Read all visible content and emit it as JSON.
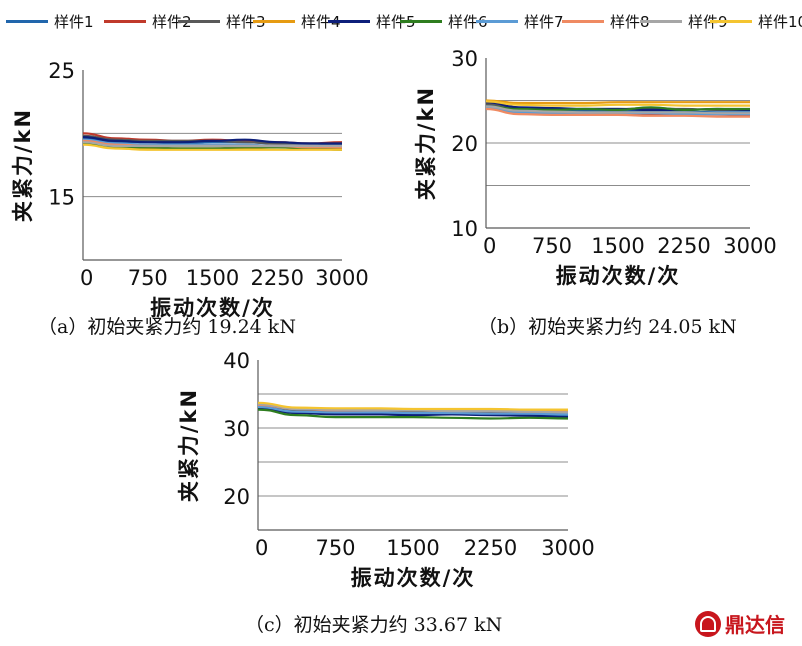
{
  "legend": [
    {
      "label": "样件1",
      "color": "#2166ac"
    },
    {
      "label": "样件2",
      "color": "#c0392b"
    },
    {
      "label": "样件3",
      "color": "#595959"
    },
    {
      "label": "样件4",
      "color": "#e69b12"
    },
    {
      "label": "样件5",
      "color": "#0d1f7a"
    },
    {
      "label": "样件6",
      "color": "#2e7d1f"
    },
    {
      "label": "样件7",
      "color": "#5b9bd5"
    },
    {
      "label": "样件8",
      "color": "#ef8a62"
    },
    {
      "label": "样件9",
      "color": "#a6a6a6"
    },
    {
      "label": "样件10",
      "color": "#f4c430"
    }
  ],
  "chart_data": [
    {
      "type": "line",
      "caption": "（a）初始夹紧力约 19.24 kN",
      "xlabel": "振动次数/次",
      "ylabel": "夹紧力/kN",
      "xlim": [
        0,
        3000
      ],
      "ylim": [
        10,
        25
      ],
      "xticks": [
        "0",
        "750",
        "1500",
        "2250",
        "3000"
      ],
      "yticks": [
        {
          "value": 15,
          "label": "15"
        },
        {
          "value": 25,
          "label": "25"
        }
      ],
      "gridlines": [
        15,
        20
      ],
      "x": [
        0,
        375,
        750,
        1125,
        1500,
        1875,
        2250,
        2625,
        3000
      ],
      "series": [
        {
          "name": "样件1",
          "values": [
            19.6,
            19.3,
            19.3,
            19.2,
            19.3,
            19.3,
            19.2,
            19.2,
            19.1
          ]
        },
        {
          "name": "样件2",
          "values": [
            20.0,
            19.6,
            19.5,
            19.4,
            19.5,
            19.4,
            19.3,
            19.2,
            19.3
          ]
        },
        {
          "name": "样件3",
          "values": [
            19.8,
            19.5,
            19.4,
            19.4,
            19.4,
            19.3,
            19.2,
            19.2,
            19.2
          ]
        },
        {
          "name": "样件4",
          "values": [
            19.3,
            18.9,
            18.8,
            18.8,
            18.8,
            18.8,
            18.9,
            18.8,
            18.8
          ]
        },
        {
          "name": "样件5",
          "values": [
            19.7,
            19.4,
            19.3,
            19.3,
            19.4,
            19.5,
            19.3,
            19.2,
            19.2
          ]
        },
        {
          "name": "样件6",
          "values": [
            19.2,
            18.9,
            18.9,
            18.8,
            18.8,
            18.9,
            18.9,
            18.8,
            18.7
          ]
        },
        {
          "name": "样件7",
          "values": [
            19.5,
            19.2,
            19.1,
            19.1,
            19.1,
            19.1,
            19.0,
            19.0,
            19.0
          ]
        },
        {
          "name": "样件8",
          "values": [
            19.4,
            19.1,
            19.0,
            19.0,
            19.0,
            19.0,
            19.0,
            18.9,
            18.9
          ]
        },
        {
          "name": "样件9",
          "values": [
            19.3,
            19.0,
            19.0,
            19.0,
            19.0,
            19.0,
            19.0,
            19.0,
            19.0
          ]
        },
        {
          "name": "样件10",
          "values": [
            19.1,
            18.8,
            18.7,
            18.7,
            18.7,
            18.7,
            18.7,
            18.7,
            18.7
          ]
        }
      ]
    },
    {
      "type": "line",
      "caption": "（b）初始夹紧力约 24.05 kN",
      "xlabel": "振动次数/次",
      "ylabel": "夹紧力/kN",
      "xlim": [
        0,
        3000
      ],
      "ylim": [
        10,
        30
      ],
      "xticks": [
        "0",
        "750",
        "1500",
        "2250",
        "3000"
      ],
      "yticks": [
        {
          "value": 10,
          "label": "10"
        },
        {
          "value": 20,
          "label": "20"
        },
        {
          "value": 30,
          "label": "30"
        }
      ],
      "gridlines": [
        15,
        20,
        25
      ],
      "x": [
        0,
        375,
        750,
        1125,
        1500,
        1875,
        2250,
        2625,
        3000
      ],
      "series": [
        {
          "name": "样件1",
          "values": [
            24.4,
            23.9,
            23.8,
            23.8,
            23.8,
            23.7,
            23.7,
            23.6,
            23.6
          ]
        },
        {
          "name": "样件2",
          "values": [
            24.2,
            23.6,
            23.5,
            23.5,
            23.4,
            23.4,
            23.4,
            23.4,
            23.3
          ]
        },
        {
          "name": "样件3",
          "values": [
            24.6,
            24.1,
            24.0,
            24.0,
            24.0,
            24.1,
            24.0,
            23.9,
            23.9
          ]
        },
        {
          "name": "样件4",
          "values": [
            25.0,
            24.7,
            24.7,
            24.7,
            24.8,
            24.8,
            24.8,
            24.8,
            24.8
          ]
        },
        {
          "name": "样件5",
          "values": [
            24.8,
            24.2,
            24.1,
            24.0,
            24.0,
            23.9,
            23.9,
            24.0,
            23.9
          ]
        },
        {
          "name": "样件6",
          "values": [
            24.3,
            24.0,
            23.9,
            24.0,
            23.9,
            24.2,
            23.9,
            24.0,
            24.0
          ]
        },
        {
          "name": "样件7",
          "values": [
            24.1,
            23.6,
            23.5,
            23.5,
            23.5,
            23.5,
            23.4,
            23.4,
            23.4
          ]
        },
        {
          "name": "样件8",
          "values": [
            24.0,
            23.4,
            23.3,
            23.3,
            23.3,
            23.2,
            23.2,
            23.1,
            23.1
          ]
        },
        {
          "name": "样件9",
          "values": [
            24.3,
            23.8,
            23.7,
            23.6,
            23.6,
            23.6,
            23.6,
            23.5,
            23.5
          ]
        },
        {
          "name": "样件10",
          "values": [
            24.9,
            24.5,
            24.4,
            24.4,
            24.5,
            24.5,
            24.4,
            24.4,
            24.4
          ]
        }
      ]
    },
    {
      "type": "line",
      "caption": "（c）初始夹紧力约 33.67 kN",
      "xlabel": "振动次数/次",
      "ylabel": "夹紧力/kN",
      "xlim": [
        0,
        3000
      ],
      "ylim": [
        15,
        40
      ],
      "xticks": [
        "0",
        "750",
        "1500",
        "2250",
        "3000"
      ],
      "yticks": [
        {
          "value": 20,
          "label": "20"
        },
        {
          "value": 30,
          "label": "30"
        },
        {
          "value": 40,
          "label": "40"
        }
      ],
      "gridlines": [
        20,
        25,
        30,
        35
      ],
      "x": [
        0,
        375,
        750,
        1125,
        1500,
        1875,
        2250,
        2625,
        3000
      ],
      "series": [
        {
          "name": "样件1",
          "values": [
            33.0,
            32.3,
            32.1,
            32.2,
            32.1,
            32.1,
            32.0,
            31.9,
            31.8
          ]
        },
        {
          "name": "样件2",
          "values": [
            33.3,
            32.6,
            32.5,
            32.5,
            32.4,
            32.4,
            32.3,
            32.3,
            32.2
          ]
        },
        {
          "name": "样件3",
          "values": [
            33.2,
            32.6,
            32.5,
            32.4,
            32.4,
            32.4,
            32.3,
            32.3,
            32.2
          ]
        },
        {
          "name": "样件4",
          "values": [
            33.6,
            32.9,
            32.8,
            32.8,
            32.7,
            32.7,
            32.7,
            32.7,
            32.6
          ]
        },
        {
          "name": "样件5",
          "values": [
            32.9,
            32.2,
            32.0,
            32.0,
            31.9,
            32.0,
            31.9,
            31.8,
            31.6
          ]
        },
        {
          "name": "样件6",
          "values": [
            32.7,
            31.9,
            31.6,
            31.6,
            31.6,
            31.5,
            31.4,
            31.5,
            31.4
          ]
        },
        {
          "name": "样件7",
          "values": [
            33.1,
            32.4,
            32.3,
            32.3,
            32.2,
            32.2,
            32.1,
            32.1,
            32.0
          ]
        },
        {
          "name": "样件8",
          "values": [
            33.4,
            32.8,
            32.6,
            32.6,
            32.6,
            32.5,
            32.5,
            32.4,
            32.4
          ]
        },
        {
          "name": "样件9",
          "values": [
            33.5,
            32.8,
            32.7,
            32.6,
            32.6,
            32.5,
            32.5,
            32.4,
            32.3
          ]
        },
        {
          "name": "样件10",
          "values": [
            33.7,
            33.0,
            32.9,
            32.9,
            32.8,
            32.8,
            32.8,
            32.7,
            32.7
          ]
        }
      ]
    }
  ],
  "brand": {
    "text": "鼎达信"
  }
}
